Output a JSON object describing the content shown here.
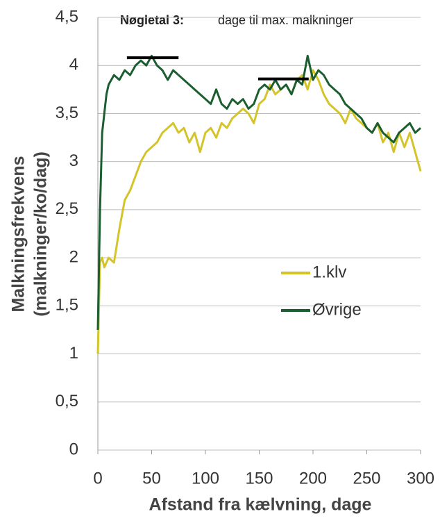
{
  "chart_data": {
    "type": "line",
    "title": "Nøgletal 3:",
    "subtitle": "dage til max. malkninger",
    "x_label": "Afstand fra kælvning, dage",
    "y_label": [
      "Malkningsfrekvens",
      "(malkninger/ko/dag)"
    ],
    "x": [
      0,
      2,
      4,
      6,
      8,
      10,
      15,
      20,
      25,
      30,
      35,
      40,
      45,
      50,
      55,
      60,
      65,
      70,
      75,
      80,
      85,
      90,
      95,
      100,
      105,
      110,
      115,
      120,
      125,
      130,
      135,
      140,
      145,
      150,
      155,
      160,
      165,
      170,
      175,
      180,
      185,
      190,
      195,
      200,
      205,
      210,
      215,
      220,
      225,
      230,
      235,
      240,
      245,
      250,
      255,
      260,
      265,
      270,
      275,
      280,
      285,
      290,
      295,
      300
    ],
    "series": [
      {
        "name": "1.klv",
        "color": "#d4c42a",
        "values": [
          1.0,
          1.95,
          2.0,
          1.9,
          1.95,
          2.0,
          1.95,
          2.3,
          2.6,
          2.7,
          2.85,
          3.0,
          3.1,
          3.15,
          3.2,
          3.3,
          3.35,
          3.4,
          3.3,
          3.35,
          3.2,
          3.3,
          3.1,
          3.3,
          3.35,
          3.25,
          3.4,
          3.35,
          3.45,
          3.5,
          3.55,
          3.5,
          3.4,
          3.6,
          3.65,
          3.8,
          3.7,
          3.75,
          3.8,
          3.7,
          3.85,
          3.9,
          3.75,
          3.95,
          3.85,
          3.7,
          3.6,
          3.55,
          3.5,
          3.4,
          3.55,
          3.45,
          3.4,
          3.35,
          3.3,
          3.4,
          3.2,
          3.3,
          3.1,
          3.3,
          3.15,
          3.3,
          3.1,
          2.9
        ]
      },
      {
        "name": "Øvrige",
        "color": "#1b5e30",
        "values": [
          1.25,
          2.5,
          3.3,
          3.5,
          3.7,
          3.8,
          3.9,
          3.85,
          3.95,
          3.9,
          4.0,
          4.05,
          4.0,
          4.1,
          4.0,
          3.95,
          3.85,
          3.95,
          3.9,
          3.85,
          3.8,
          3.75,
          3.7,
          3.65,
          3.6,
          3.75,
          3.6,
          3.55,
          3.65,
          3.6,
          3.65,
          3.55,
          3.6,
          3.75,
          3.8,
          3.75,
          3.85,
          3.75,
          3.8,
          3.7,
          3.85,
          3.8,
          4.1,
          3.85,
          3.95,
          3.9,
          3.8,
          3.75,
          3.7,
          3.6,
          3.55,
          3.5,
          3.45,
          3.35,
          3.3,
          3.4,
          3.3,
          3.25,
          3.2,
          3.3,
          3.35,
          3.4,
          3.3,
          3.35
        ]
      }
    ],
    "reference_lines": [
      {
        "x": [
          27,
          75
        ],
        "y": 4.08
      },
      {
        "x": [
          149,
          196
        ],
        "y": 3.86
      }
    ],
    "xlim": [
      0,
      300
    ],
    "xticks": [
      0,
      50,
      100,
      150,
      200,
      250,
      300
    ],
    "ylim": [
      0,
      4.5
    ],
    "yticks": [
      0,
      {
        "value": 0.5,
        "label": "0,5"
      },
      1,
      {
        "value": 1.5,
        "label": "1,5"
      },
      2,
      {
        "value": 2.5,
        "label": "2,5"
      },
      3,
      {
        "value": 3.5,
        "label": "3,5"
      },
      4,
      {
        "value": 4.5,
        "label": "4,5"
      }
    ],
    "grid": true
  }
}
